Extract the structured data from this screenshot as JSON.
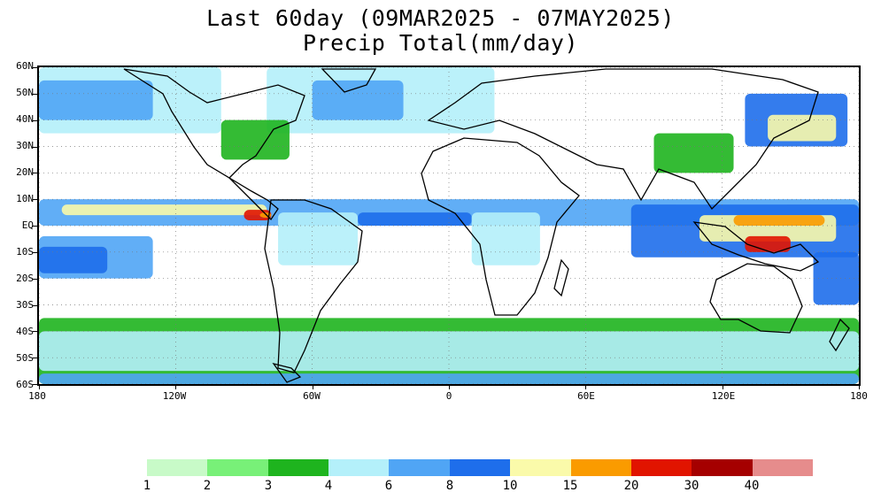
{
  "title": {
    "line1": "Last 60day (09MAR2025 - 07MAY2025)",
    "line2": "Precip Total(mm/day)"
  },
  "axes": {
    "y_labels": [
      "60N",
      "50N",
      "40N",
      "30N",
      "20N",
      "10N",
      "EQ",
      "10S",
      "20S",
      "30S",
      "40S",
      "50S",
      "60S"
    ],
    "y_values": [
      60,
      50,
      40,
      30,
      20,
      10,
      0,
      -10,
      -20,
      -30,
      -40,
      -50,
      -60
    ],
    "x_labels": [
      "180",
      "120W",
      "60W",
      "0",
      "60E",
      "120E",
      "180"
    ],
    "x_values": [
      -180,
      -120,
      -60,
      0,
      60,
      120,
      180
    ],
    "lon_range": [
      -180,
      180
    ],
    "lat_range": [
      -60,
      60
    ],
    "grid": "dotted"
  },
  "legend": {
    "colors": [
      "#c8fac8",
      "#78f078",
      "#1eb41e",
      "#b4f0fa",
      "#50a5f5",
      "#1e6eeb",
      "#fafaaa",
      "#fa9b00",
      "#e11400",
      "#a50000",
      "#e68c8c"
    ],
    "labels": [
      "1",
      "2",
      "3",
      "4",
      "6",
      "8",
      "10",
      "15",
      "20",
      "30",
      "40"
    ]
  },
  "precip_regions": [
    {
      "lon": [
        -180,
        180
      ],
      "lat": [
        0,
        10
      ],
      "level": 4
    },
    {
      "lon": [
        -170,
        -80
      ],
      "lat": [
        4,
        8
      ],
      "level": 6
    },
    {
      "lon": [
        -90,
        -78
      ],
      "lat": [
        2,
        6
      ],
      "level": 8
    },
    {
      "lon": [
        -83,
        -78
      ],
      "lat": [
        3,
        5
      ],
      "level": 7
    },
    {
      "lon": [
        -40,
        10
      ],
      "lat": [
        0,
        5
      ],
      "level": 5
    },
    {
      "lon": [
        80,
        180
      ],
      "lat": [
        -12,
        8
      ],
      "level": 5
    },
    {
      "lon": [
        110,
        170
      ],
      "lat": [
        -6,
        4
      ],
      "level": 6
    },
    {
      "lon": [
        125,
        165
      ],
      "lat": [
        0,
        4
      ],
      "level": 7
    },
    {
      "lon": [
        130,
        150
      ],
      "lat": [
        -10,
        -4
      ],
      "level": 8
    },
    {
      "lon": [
        -180,
        -130
      ],
      "lat": [
        -20,
        -4
      ],
      "level": 4
    },
    {
      "lon": [
        -180,
        -150
      ],
      "lat": [
        -18,
        -8
      ],
      "level": 5
    },
    {
      "lon": [
        160,
        180
      ],
      "lat": [
        -30,
        -10
      ],
      "level": 5
    },
    {
      "lon": [
        130,
        175
      ],
      "lat": [
        30,
        50
      ],
      "level": 5
    },
    {
      "lon": [
        140,
        170
      ],
      "lat": [
        32,
        42
      ],
      "level": 6
    },
    {
      "lon": [
        -180,
        180
      ],
      "lat": [
        -60,
        -35
      ],
      "level": 2
    },
    {
      "lon": [
        -180,
        180
      ],
      "lat": [
        -55,
        -40
      ],
      "level": 3
    },
    {
      "lon": [
        -180,
        180
      ],
      "lat": [
        -60,
        -56
      ],
      "level": 4
    },
    {
      "lon": [
        -180,
        -100
      ],
      "lat": [
        35,
        60
      ],
      "level": 3
    },
    {
      "lon": [
        -180,
        -130
      ],
      "lat": [
        40,
        55
      ],
      "level": 4
    },
    {
      "lon": [
        -80,
        20
      ],
      "lat": [
        35,
        60
      ],
      "level": 3
    },
    {
      "lon": [
        -60,
        -20
      ],
      "lat": [
        40,
        55
      ],
      "level": 4
    },
    {
      "lon": [
        -75,
        -40
      ],
      "lat": [
        -15,
        5
      ],
      "level": 3
    },
    {
      "lon": [
        10,
        40
      ],
      "lat": [
        -15,
        5
      ],
      "level": 3
    },
    {
      "lon": [
        -100,
        -70
      ],
      "lat": [
        25,
        40
      ],
      "level": 2
    },
    {
      "lon": [
        90,
        125
      ],
      "lat": [
        20,
        35
      ],
      "level": 2
    }
  ]
}
